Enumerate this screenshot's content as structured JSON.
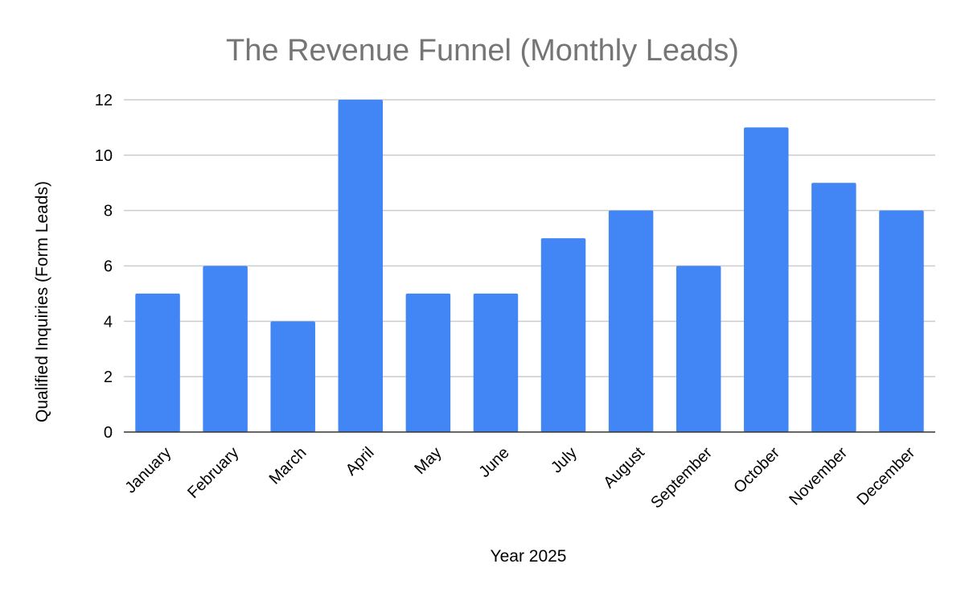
{
  "chart_data": {
    "type": "bar",
    "title": "The Revenue Funnel (Monthly Leads)",
    "xlabel": "Year 2025",
    "ylabel": "Qualified Inquiries (Form Leads)",
    "categories": [
      "January",
      "February",
      "March",
      "April",
      "May",
      "June",
      "July",
      "August",
      "September",
      "October",
      "November",
      "December"
    ],
    "values": [
      5,
      6,
      4,
      12,
      5,
      5,
      7,
      8,
      6,
      11,
      9,
      8
    ],
    "ylim": [
      0,
      12
    ],
    "yticks": [
      "0",
      "2",
      "4",
      "6",
      "8",
      "10",
      "12"
    ],
    "grid": true,
    "bar_color": "#4285f4",
    "legend": "none"
  }
}
